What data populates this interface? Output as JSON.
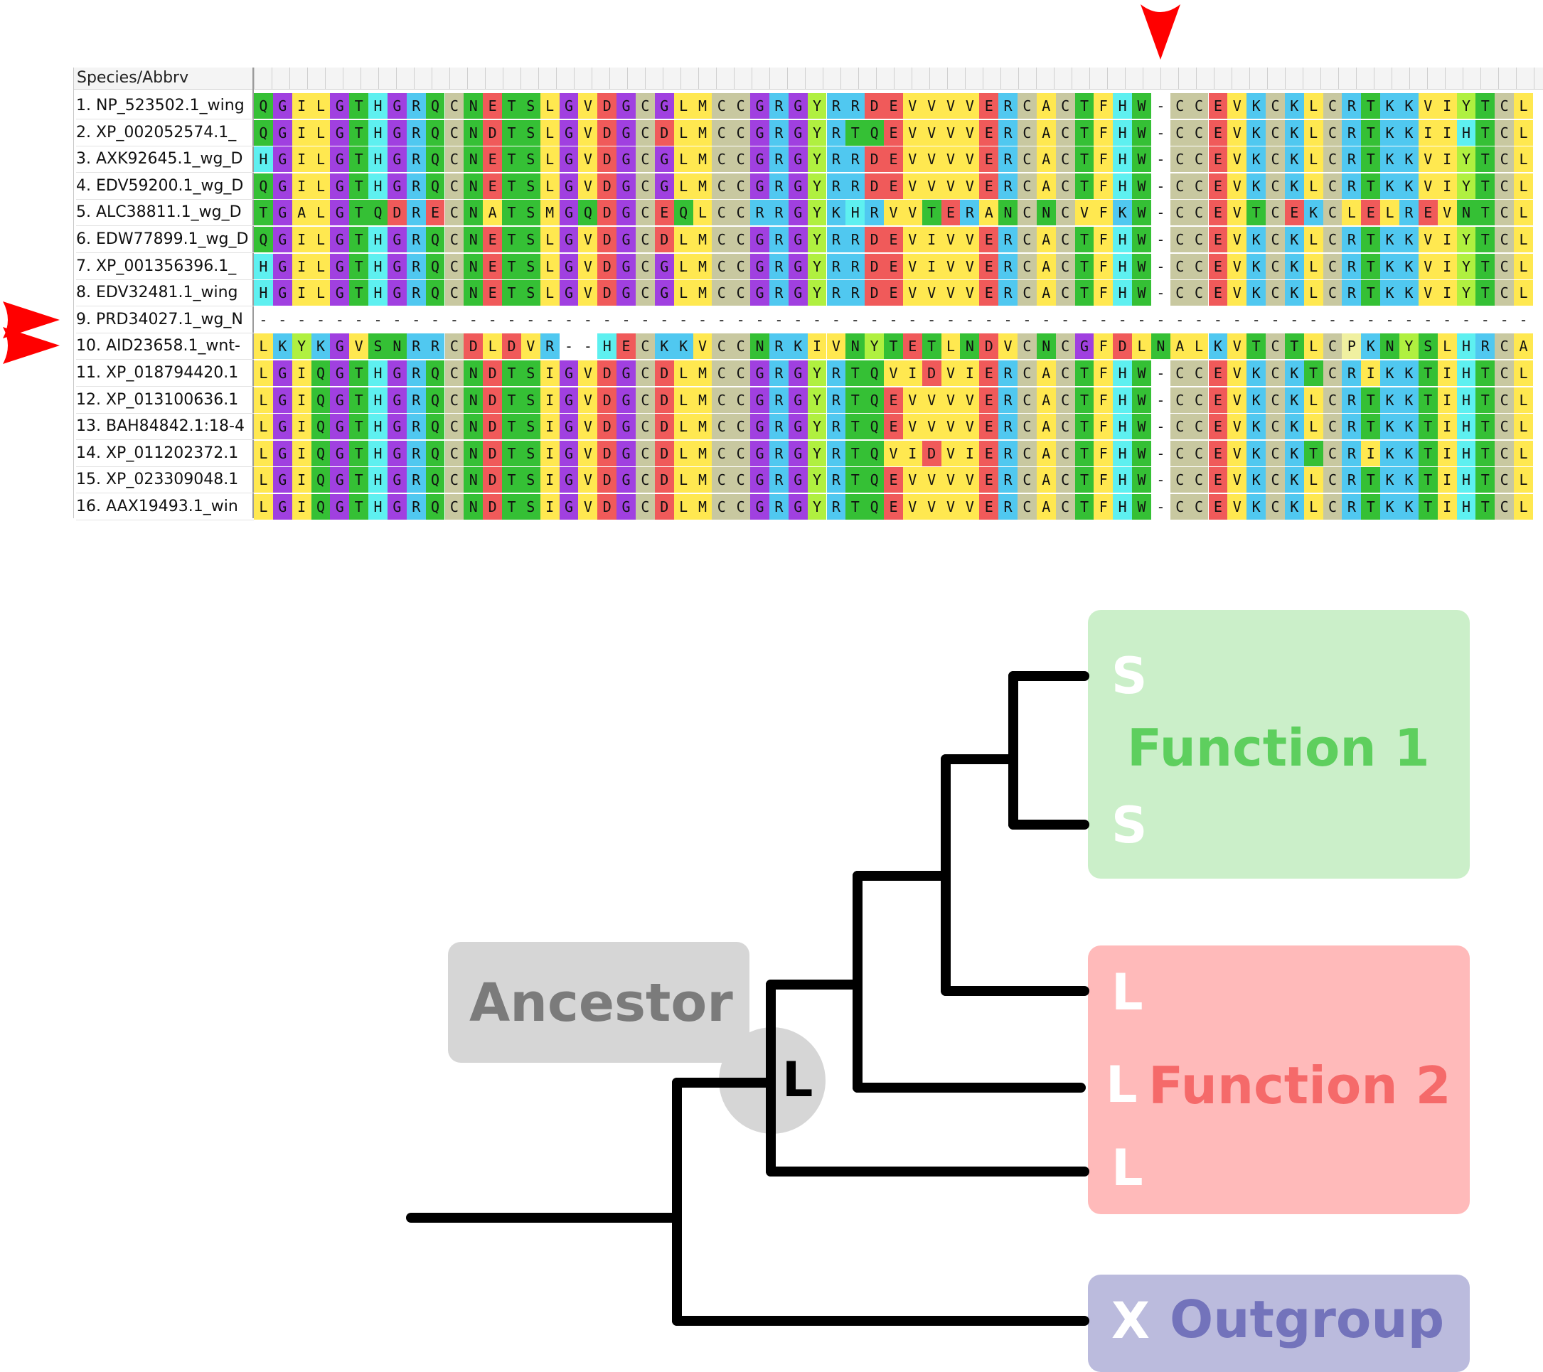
{
  "alignment": {
    "header": "Species/Abbrv",
    "gap_char": "-",
    "colors": {
      "C": "#c8c8a0",
      "D": "#f05a5a",
      "E": "#f05a5a",
      "K": "#50c8f0",
      "R": "#50c8f0",
      "H": "#5ef0f0",
      "G": "#a040e0",
      "L": "#ffe850",
      "I": "#ffe850",
      "V": "#ffe850",
      "M": "#ffe850",
      "A": "#ffe850",
      "F": "#ffe850",
      "S": "#35c035",
      "T": "#35c035",
      "N": "#35c035",
      "Q": "#35c035",
      "Y": "#b0f040",
      "W": "#35c035",
      "P": "#f0f0a0"
    },
    "rows": [
      {
        "name": "1. NP_523502.1_wing",
        "seq": "QGILGTHGRQCNETSLGVDGCGLMCCGRGYRRDEVVVVERCACTFHW-CCEVKCKLCRTKKVIYTCL"
      },
      {
        "name": "2. XP_002052574.1_",
        "seq": "QGILGTHGRQCNDTSLGVDGCDLMCCGRGYRTQEVVVVERCACTFHW-CCEVKCKLCRTKKIIHTCL"
      },
      {
        "name": "3. AXK92645.1_wg_D",
        "seq": "HGILGTHGRQCNETSLGVDGCGLMCCGRGYRRDEVVVVERCACTFHW-CCEVKCKLCRTKKVIYTCL"
      },
      {
        "name": "4. EDV59200.1_wg_D",
        "seq": "QGILGTHGRQCNETSLGVDGCGLMCCGRGYRRDEVVVVERCACTFHW-CCEVKCKLCRTKKVIYTCL"
      },
      {
        "name": "5. ALC38811.1_wg_D",
        "seq": "TGALGTQDRECNATSMGQDGCEQLCCRRGYKHRVVTERANCNCVFKW-CCEVTCEKCLELREVNTCL"
      },
      {
        "name": "6. EDW77899.1_wg_D",
        "seq": "QGILGTHGRQCNETSLGVDGCDLMCCGRGYRRDEVIVVERCACTFHW-CCEVKCKLCRTKKVIYTCL"
      },
      {
        "name": "7. XP_001356396.1_",
        "seq": "HGILGTHGRQCNETSLGVDGCGLMCCGRGYRRDEVIVVERCACTFHW-CCEVKCKLCRTKKVIYTCL"
      },
      {
        "name": "8. EDV32481.1_wing",
        "seq": "HGILGTHGRQCNETSLGVDGCGLMCCGRGYRRDEVVVVERCACTFHW-CCEVKCKLCRTKKVIYTCL"
      },
      {
        "name": "9. PRD34027.1_wg_N",
        "seq": "-------------------------------------------------------------------"
      },
      {
        "name": "10. AID23658.1_wnt-",
        "seq": "LKYKGVSNRRCDLDVR--HECKKVCCNRKIVNYTETLNDVCNCGFDLNALKVTCTLCPKNYSLHRCA"
      },
      {
        "name": "11. XP_018794420.1",
        "seq": "LGIQGTHGRQCNDTSIGVDGCDLMCCGRGYRTQVIDVIERCACTFHW-CCEVKCKTCRIKKTIHTCL"
      },
      {
        "name": "12. XP_013100636.1",
        "seq": "LGIQGTHGRQCNDTSIGVDGCDLMCCGRGYRTQEVVVVERCACTFHW-CCEVKCKLCRTKKTIHTCL"
      },
      {
        "name": "13. BAH84842.1:18-4",
        "seq": "LGIQGTHGRQCNDTSIGVDGCDLMCCGRGYRTQEVVVVERCACTFHW-CCEVKCKLCRTKKTIHTCL"
      },
      {
        "name": "14. XP_011202372.1",
        "seq": "LGIQGTHGRQCNDTSIGVDGCDLMCCGRGYRTQVIDVIERCACTFHW-CCEVKCKTCRIKKTIHTCL"
      },
      {
        "name": "15. XP_023309048.1",
        "seq": "LGIQGTHGRQCNDTSIGVDGCDLMCCGRGYRTQEVVVVERCACTFHW-CCEVKCKLCRTKKTIHTCL"
      },
      {
        "name": "16. AAX19493.1_win",
        "seq": "LGIQGTHGRQCNDTSIGVDGCDLMCCGRGYRTQEVVVVERCACTFHW-CCEVKCKLCRTKKTIHTCL"
      }
    ]
  },
  "tree": {
    "ancestor_label": "Ancestor",
    "ancestor_state": "L",
    "function1": {
      "label": "Function 1",
      "color": "#cbefc9",
      "text_color": "#5ecf5e",
      "leaves": [
        "S",
        "S"
      ]
    },
    "function2": {
      "label": "Function 2",
      "color": "#ffbaba",
      "text_color": "#f56a6a",
      "leaves": [
        "L",
        "L",
        "L"
      ]
    },
    "outgroup": {
      "label": "Outgroup",
      "color": "#bbbbdd",
      "text_color": "#7373bb",
      "leaves": [
        "X"
      ]
    },
    "ancestor_box_color": "#d6d6d6",
    "ancestor_text_color": "#7b7b7b",
    "marker_color": "#ff0000"
  }
}
